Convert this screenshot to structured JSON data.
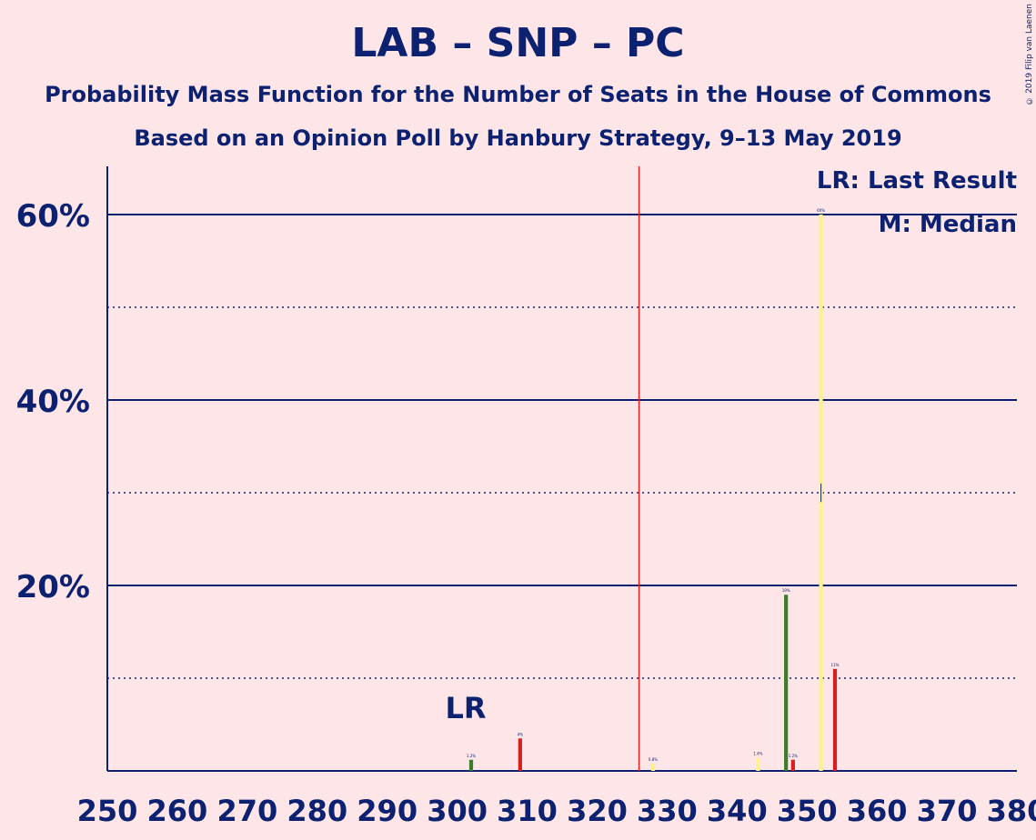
{
  "header": {
    "title": "LAB – SNP – PC",
    "subtitle": "Probability Mass Function for the Number of Seats in the House of Commons",
    "subtitle2": "Based on an Opinion Poll by Hanbury Strategy, 9–13 May 2019",
    "copyright": "© 2019 Filip van Laenen"
  },
  "legend": {
    "lr": "LR: Last Result",
    "m": "M: Median"
  },
  "colors": {
    "background": "#FDE5E8",
    "text": "#0C2170",
    "majority_line": "#E0201F",
    "lab": "#D52020",
    "snp": "#FFF18F",
    "pc": "#3A7D2C"
  },
  "chart_data": {
    "type": "bar",
    "xlim": [
      250,
      380
    ],
    "ylim": [
      0,
      65
    ],
    "x_ticks": [
      250,
      260,
      270,
      280,
      290,
      300,
      310,
      320,
      330,
      340,
      350,
      360,
      370,
      380
    ],
    "x_tick_labels": [
      "250",
      "260",
      "270",
      "280",
      "290",
      "300",
      "310",
      "320",
      "330",
      "340",
      "350",
      "360",
      "370",
      "380"
    ],
    "y_ticks_major": [
      20,
      40,
      60
    ],
    "y_tick_labels": [
      "20%",
      "40%",
      "60%"
    ],
    "y_ticks_minor": [
      10,
      30,
      50
    ],
    "majority_seat": 326,
    "last_result": {
      "seat": 302,
      "label": "LR"
    },
    "median": {
      "seat": 352
    },
    "bars": [
      {
        "seat": 302,
        "value": 1.2,
        "color": "pc"
      },
      {
        "seat": 309,
        "value": 3.5,
        "color": "lab"
      },
      {
        "seat": 328,
        "value": 0.8,
        "color": "snp"
      },
      {
        "seat": 343,
        "value": 1.4,
        "color": "snp"
      },
      {
        "seat": 347,
        "value": 19,
        "color": "pc"
      },
      {
        "seat": 348,
        "value": 1.2,
        "color": "lab"
      },
      {
        "seat": 352,
        "value": 60,
        "color": "snp"
      },
      {
        "seat": 354,
        "value": 11,
        "color": "lab"
      }
    ],
    "bar_labels": [
      "1.2%",
      "4%",
      "0.8%",
      "1.4%",
      "19%",
      "1.2%",
      "60%",
      "11%"
    ]
  }
}
